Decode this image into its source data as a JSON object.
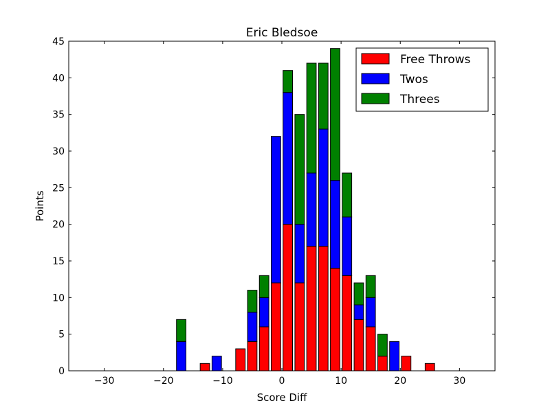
{
  "chart_data": {
    "type": "bar",
    "stacked": true,
    "title": "Eric Bledsoe",
    "xlabel": "Score Diff",
    "ylabel": "Points",
    "xlim": [
      -36,
      36
    ],
    "ylim": [
      0,
      45
    ],
    "xticks": [
      -30,
      -20,
      -10,
      0,
      10,
      20,
      30
    ],
    "xtick_labels": [
      "−30",
      "−20",
      "−10",
      "0",
      "10",
      "20",
      "30"
    ],
    "yticks": [
      0,
      5,
      10,
      15,
      20,
      25,
      30,
      35,
      40,
      45
    ],
    "bar_width": 1.6,
    "legend_position": "top-right",
    "grid": false,
    "x": [
      -35,
      -33,
      -31,
      -29,
      -27,
      -25,
      -23,
      -21,
      -19,
      -17,
      -15,
      -13,
      -11,
      -9,
      -7,
      -5,
      -3,
      -1,
      1,
      3,
      5,
      7,
      9,
      11,
      13,
      15,
      17,
      19,
      21,
      23,
      25,
      27,
      29,
      31,
      33,
      35
    ],
    "series": [
      {
        "name": "Free Throws",
        "color": "#ff0000",
        "values": [
          0,
          0,
          0,
          0,
          0,
          0,
          0,
          0,
          0,
          0,
          0,
          1,
          0,
          0,
          3,
          4,
          6,
          12,
          20,
          12,
          17,
          17,
          14,
          13,
          7,
          6,
          2,
          0,
          2,
          0,
          1,
          0,
          0,
          0,
          0,
          0
        ]
      },
      {
        "name": "Twos",
        "color": "#0000ff",
        "values": [
          0,
          0,
          0,
          0,
          0,
          0,
          0,
          0,
          0,
          4,
          0,
          0,
          2,
          0,
          0,
          4,
          4,
          20,
          18,
          8,
          10,
          16,
          12,
          8,
          2,
          4,
          0,
          4,
          0,
          0,
          0,
          0,
          0,
          0,
          0,
          0
        ]
      },
      {
        "name": "Threes",
        "color": "#008000",
        "values": [
          0,
          0,
          0,
          0,
          0,
          0,
          0,
          0,
          0,
          3,
          0,
          0,
          0,
          0,
          0,
          3,
          3,
          0,
          3,
          15,
          15,
          9,
          18,
          6,
          3,
          3,
          3,
          0,
          0,
          0,
          0,
          0,
          0,
          0,
          0,
          0
        ]
      }
    ]
  }
}
